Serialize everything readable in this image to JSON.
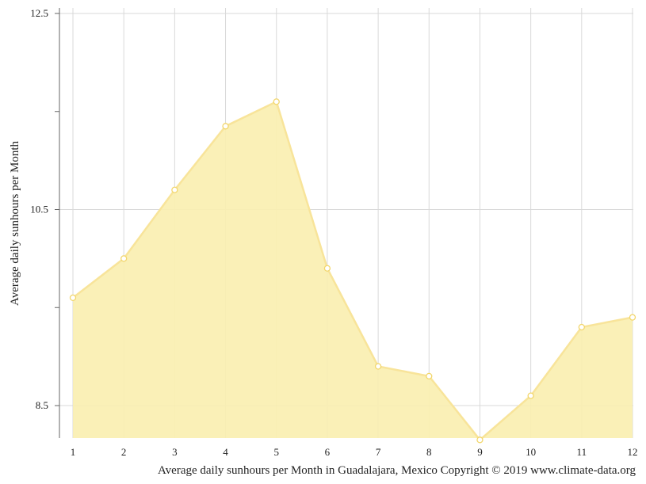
{
  "chart_data": {
    "type": "area",
    "x": [
      "1",
      "2",
      "3",
      "4",
      "5",
      "6",
      "7",
      "8",
      "9",
      "10",
      "11",
      "12"
    ],
    "series": [
      {
        "values": [
          9.6,
          10.0,
          10.7,
          11.35,
          11.6,
          9.9,
          8.9,
          8.8,
          8.15,
          8.6,
          9.3,
          9.4
        ]
      }
    ],
    "ylabel": "Average daily sunhours per Month",
    "caption": "Average daily sunhours per Month in Guadalajara, Mexico Copyright © 2019 www.climate-data.org",
    "y_tick_labels": [
      "8.5",
      "10.5",
      "12.5"
    ],
    "ylim": [
      8.15,
      12.5
    ],
    "grid": true,
    "colors": {
      "fill": "#faeeaf",
      "line": "#f8e49a",
      "marker_fill": "#ffffff",
      "marker_stroke": "#f2d66b",
      "grid": "#d9d9d9",
      "axis": "#666666"
    }
  }
}
